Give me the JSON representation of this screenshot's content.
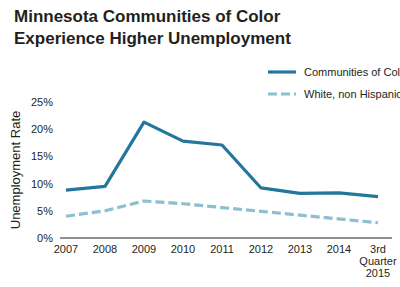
{
  "chart_data": {
    "type": "line",
    "title": "Minnesota Communities of Color\nExperience Higher Unemployment",
    "y_label": "Unemployment Rate",
    "categories": [
      "2007",
      "2008",
      "2009",
      "2010",
      "2011",
      "2012",
      "2013",
      "2014",
      "3rd Quarter 2015"
    ],
    "series": [
      {
        "name": "Communities of Color",
        "color": "#23779a",
        "line_style": "solid",
        "values": [
          8.8,
          9.5,
          21.3,
          17.8,
          17.1,
          9.2,
          8.2,
          8.3,
          7.6
        ]
      },
      {
        "name": "White, non Hispanic",
        "color": "#8cbfcf",
        "line_style": "dashed",
        "values": [
          4.0,
          5.0,
          6.8,
          6.3,
          5.6,
          4.9,
          4.2,
          3.5,
          2.8
        ]
      }
    ],
    "ylim": [
      0,
      25
    ],
    "yticks": [
      {
        "value": 0,
        "label": "0%"
      },
      {
        "value": 5,
        "label": "5%"
      },
      {
        "value": 10,
        "label": "10%"
      },
      {
        "value": 15,
        "label": "15%"
      },
      {
        "value": 20,
        "label": "20%"
      },
      {
        "value": 25,
        "label": "25%"
      }
    ],
    "grid": false,
    "legend": "upper right"
  }
}
